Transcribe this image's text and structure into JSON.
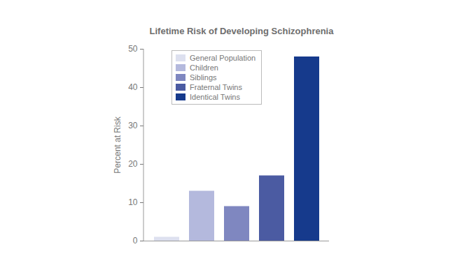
{
  "chart_data": {
    "type": "bar",
    "title": "Lifetime Risk of Developing Schizophrenia",
    "y_label": "Percent at Risk",
    "categories": [
      "General Population",
      "Children",
      "Siblings",
      "Fraternal Twins",
      "Identical Twins"
    ],
    "values": [
      1,
      13,
      9,
      17,
      48
    ],
    "colors": [
      "#dde0ef",
      "#b4b9dd",
      "#7f87c0",
      "#4b5ba2",
      "#163a8c"
    ],
    "ylim": [
      0,
      50
    ],
    "yticks": [
      0,
      10,
      20,
      30,
      40,
      50
    ],
    "legend": "upper-left",
    "tick_labels": "y"
  }
}
